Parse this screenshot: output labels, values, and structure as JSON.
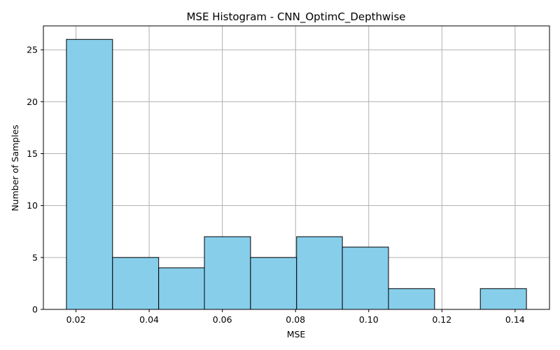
{
  "chart_data": {
    "type": "bar",
    "title": "MSE Histogram - CNN_OptimC_Depthwise",
    "xlabel": "MSE",
    "ylabel": "Number of Samples",
    "bin_edges": [
      0.0174,
      0.03,
      0.0426,
      0.0551,
      0.0677,
      0.0803,
      0.0928,
      0.1054,
      0.118,
      0.1305,
      0.1431
    ],
    "values": [
      26,
      5,
      4,
      7,
      5,
      7,
      6,
      2,
      0,
      2
    ],
    "xlim": [
      0.0111,
      0.1494
    ],
    "ylim": [
      0,
      27.3
    ],
    "xticks": [
      0.02,
      0.04,
      0.06,
      0.08,
      0.1,
      0.12,
      0.14
    ],
    "xtick_labels": [
      "0.02",
      "0.04",
      "0.06",
      "0.08",
      "0.10",
      "0.12",
      "0.14"
    ],
    "yticks": [
      0,
      5,
      10,
      15,
      20,
      25
    ],
    "ytick_labels": [
      "0",
      "5",
      "10",
      "15",
      "20",
      "25"
    ],
    "grid": true,
    "bar_color": "#87CEEB",
    "edge_color": "#000000",
    "grid_color": "#b0b0b0"
  }
}
